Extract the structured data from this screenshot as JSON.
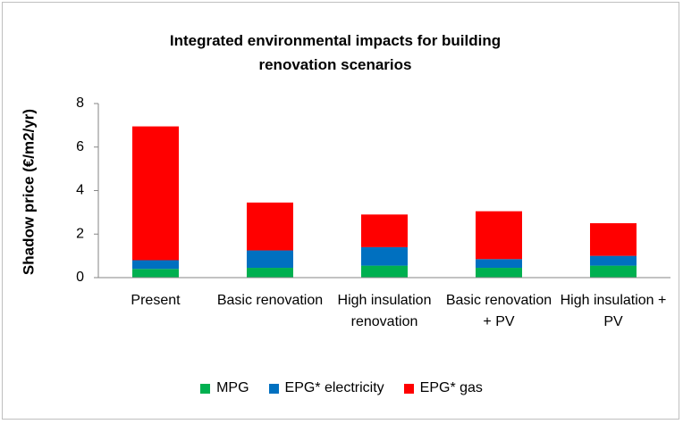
{
  "chart_data": {
    "type": "bar",
    "stacked": true,
    "title": "Integrated environmental impacts for building renovation scenarios",
    "y_label": "Shadow price (€/m2/yr)",
    "categories": [
      "Present",
      "Basic renovation",
      "High insulation renovation",
      "Basic renovation + PV",
      "High insulation + PV"
    ],
    "series": [
      {
        "name": "MPG",
        "color": "#00b050",
        "values": [
          0.4,
          0.45,
          0.55,
          0.45,
          0.55
        ]
      },
      {
        "name": "EPG* electricity",
        "color": "#0070c0",
        "values": [
          0.4,
          0.8,
          0.85,
          0.4,
          0.45
        ]
      },
      {
        "name": "EPG* gas",
        "color": "#ff0000",
        "values": [
          6.15,
          2.2,
          1.5,
          2.2,
          1.5
        ]
      }
    ],
    "ylim": [
      0,
      8
    ],
    "yticks": [
      0,
      2,
      4,
      6,
      8
    ],
    "grid": false
  }
}
